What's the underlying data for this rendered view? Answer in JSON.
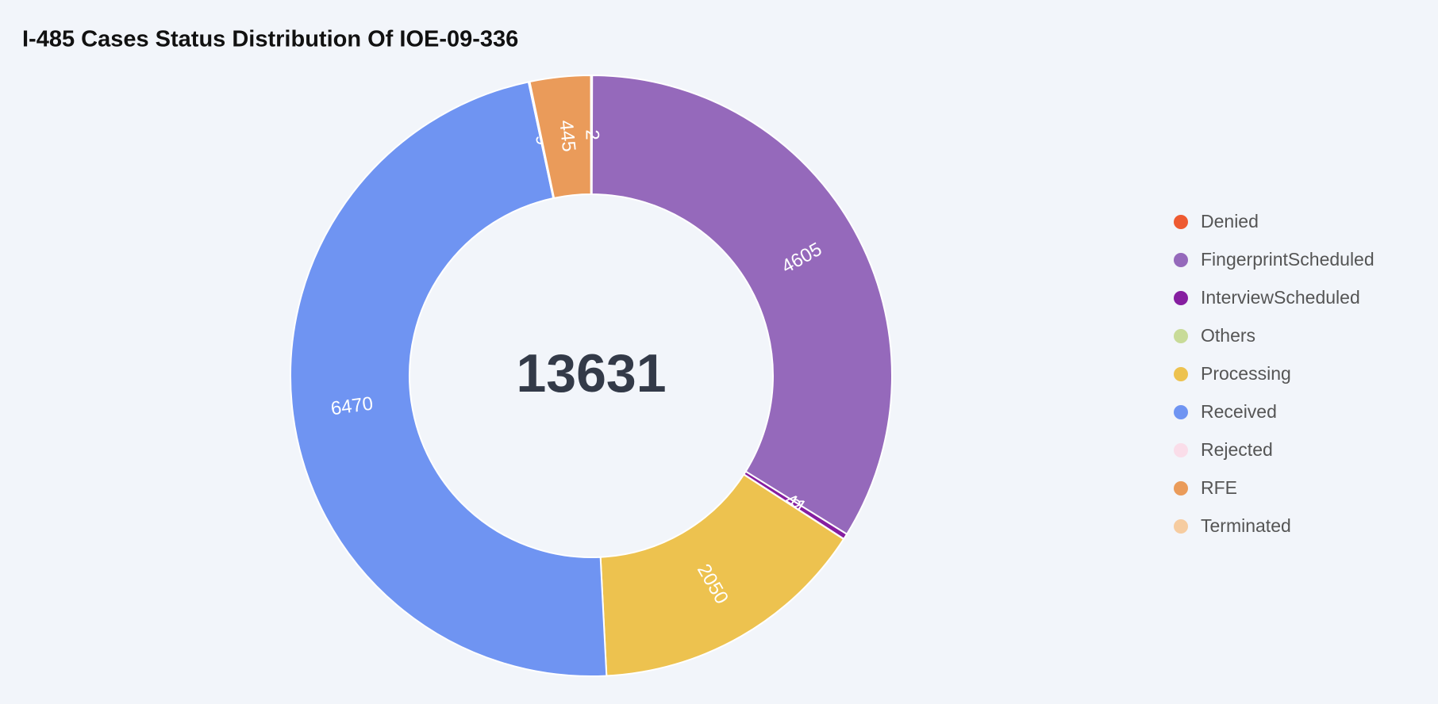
{
  "chart_data": {
    "type": "donut",
    "title": "I-485 Cases Status Distribution Of IOE-09-336",
    "total": 13631,
    "categories": [
      "Denied",
      "FingerprintScheduled",
      "InterviewScheduled",
      "Others",
      "Processing",
      "Received",
      "Rejected",
      "RFE",
      "Terminated"
    ],
    "values": [
      7,
      4605,
      41,
      2,
      2050,
      6470,
      9,
      445,
      2
    ],
    "colors": [
      "#ee5a31",
      "#9569bb",
      "#861ea0",
      "#c8db98",
      "#edc24f",
      "#6f94f2",
      "#fadde9",
      "#ea9b5a",
      "#f6cca0"
    ],
    "legend": "right"
  }
}
